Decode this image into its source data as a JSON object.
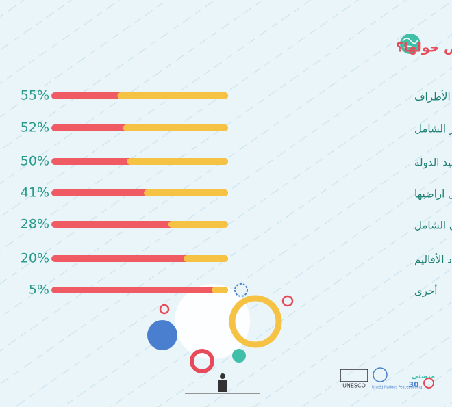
{
  "chart_data": {
    "type": "bar",
    "orientation": "horizontal",
    "title": "برأيك ما هي الملفات الأهم للتفاوض حولها؟",
    "categories": [
      "حكومة وطنية تمثل جميع الأطراف",
      "الملف الأقتصادي ومنع الإنهيار الشامل",
      "نزع سلاح كل الأطراف وحصره بيد الدولة",
      "استعادة الدولة لنفوذها على كل اراضيها",
      "مخرجات مؤتمر الحوار الوطني الشامل",
      "شكل الدولة وعدد الأقاليم",
      "أخرى"
    ],
    "values": [
      55,
      52,
      50,
      41,
      28,
      20,
      5
    ],
    "value_labels": [
      "55%",
      "52%",
      "50%",
      "41%",
      "28%",
      "20%",
      "5%"
    ],
    "color": "#f5c244",
    "track_color": "#ef5a63",
    "xlim": [
      0,
      90
    ]
  },
  "logos": [
    "UNESCO",
    "United Nations Peacebuilding",
    "منصتي",
    "30"
  ]
}
